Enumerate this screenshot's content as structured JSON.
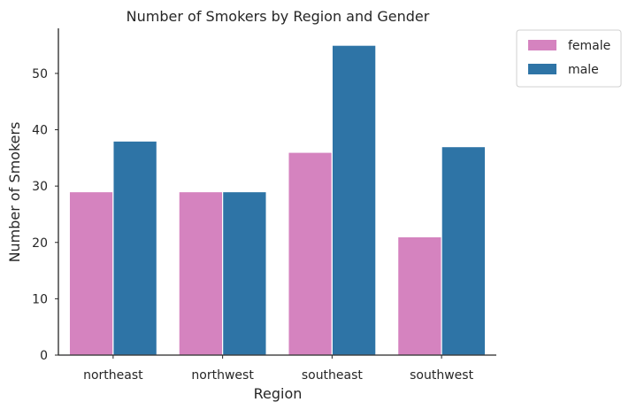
{
  "chart_data": {
    "type": "bar",
    "title": "Number of Smokers by Region and Gender",
    "xlabel": "Region",
    "ylabel": "Number of Smokers",
    "categories": [
      "northeast",
      "northwest",
      "southeast",
      "southwest"
    ],
    "series": [
      {
        "name": "female",
        "color": "#d583bf",
        "values": [
          29,
          29,
          36,
          21
        ]
      },
      {
        "name": "male",
        "color": "#2e74a6",
        "values": [
          38,
          29,
          55,
          37
        ]
      }
    ],
    "ylim": [
      0,
      58
    ],
    "yticks": [
      0,
      10,
      20,
      30,
      40,
      50
    ],
    "grid": false,
    "legend_position": "outside-top-right"
  }
}
